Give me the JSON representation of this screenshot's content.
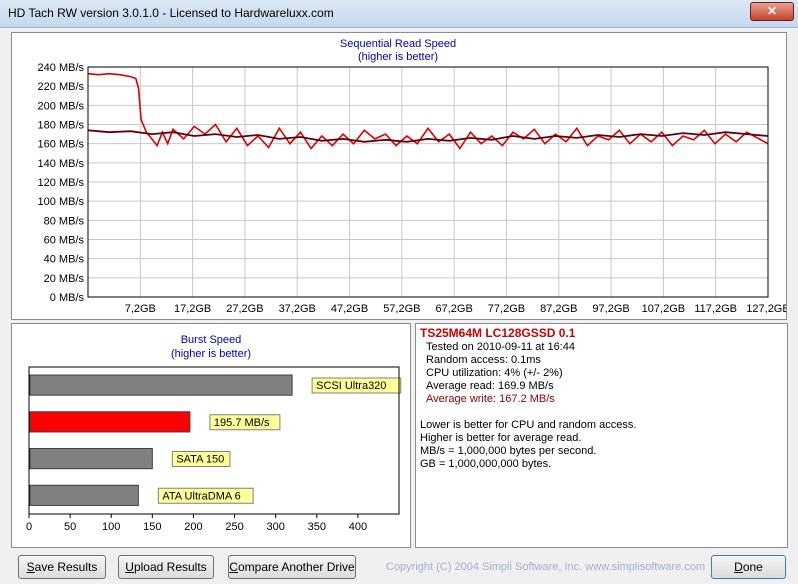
{
  "window": {
    "title": "HD Tach RW version 3.0.1.0 - Licensed to Hardwareluxx.com",
    "close_glyph": "✕"
  },
  "chart_data": [
    {
      "type": "line",
      "title": "Sequential Read Speed",
      "subtitle": "(higher is better)",
      "xlabel": "",
      "ylabel": "",
      "ylim": [
        0,
        240
      ],
      "yticks": [
        "0 MB/s",
        "20 MB/s",
        "40 MB/s",
        "60 MB/s",
        "80 MB/s",
        "100 MB/s",
        "120 MB/s",
        "140 MB/s",
        "160 MB/s",
        "180 MB/s",
        "200 MB/s",
        "220 MB/s",
        "240 MB/s"
      ],
      "xticks": [
        "7,2GB",
        "17,2GB",
        "27,2GB",
        "37,2GB",
        "47,2GB",
        "57,2GB",
        "67,2GB",
        "77,2GB",
        "87,2GB",
        "97,2GB",
        "107,2GB",
        "117,2GB",
        "127,2GB"
      ],
      "xlim": [
        0,
        128
      ],
      "grid": true,
      "series": [
        {
          "color": "#e00000",
          "x": [
            0,
            2,
            4,
            6,
            8,
            9,
            9.5,
            10,
            11,
            12,
            13,
            14,
            15,
            16,
            18,
            20,
            22,
            24,
            26,
            28,
            30,
            32,
            34,
            36,
            38,
            40,
            42,
            44,
            46,
            48,
            50,
            52,
            54,
            56,
            58,
            60,
            62,
            64,
            66,
            68,
            70,
            72,
            74,
            76,
            78,
            80,
            82,
            84,
            86,
            88,
            90,
            92,
            94,
            96,
            98,
            100,
            102,
            104,
            106,
            108,
            110,
            112,
            114,
            116,
            118,
            120,
            122,
            124,
            126,
            128
          ],
          "y": [
            233,
            232,
            233,
            232,
            230,
            228,
            218,
            185,
            172,
            165,
            158,
            172,
            160,
            175,
            165,
            178,
            170,
            180,
            162,
            176,
            158,
            168,
            156,
            176,
            160,
            172,
            155,
            168,
            158,
            170,
            160,
            174,
            165,
            170,
            158,
            168,
            160,
            176,
            162,
            170,
            155,
            172,
            160,
            168,
            158,
            172,
            165,
            175,
            160,
            170,
            162,
            176,
            158,
            168,
            164,
            174,
            160,
            170,
            162,
            172,
            158,
            168,
            164,
            174,
            160,
            170,
            162,
            172,
            166,
            160
          ]
        },
        {
          "color": "#600010",
          "x": [
            0,
            4,
            8,
            12,
            16,
            20,
            24,
            28,
            32,
            36,
            40,
            44,
            48,
            52,
            56,
            60,
            64,
            68,
            72,
            76,
            80,
            84,
            88,
            92,
            96,
            100,
            104,
            108,
            112,
            116,
            120,
            124,
            128
          ],
          "y": [
            174,
            172,
            173,
            170,
            172,
            168,
            170,
            167,
            169,
            165,
            167,
            163,
            165,
            162,
            164,
            162,
            165,
            163,
            166,
            164,
            168,
            165,
            168,
            166,
            169,
            167,
            170,
            168,
            171,
            169,
            172,
            170,
            168
          ]
        }
      ]
    },
    {
      "type": "bar",
      "title": "Burst Speed",
      "subtitle": "(higher is better)",
      "xlim": [
        0,
        450
      ],
      "xticks": [
        "0",
        "50",
        "100",
        "150",
        "200",
        "250",
        "300",
        "350",
        "400"
      ],
      "categories": [
        "SCSI Ultra320",
        "195.7 MB/s",
        "SATA 150",
        "ATA UltraDMA 6"
      ],
      "values": [
        320,
        195.7,
        150,
        133
      ],
      "colors": [
        "#808080",
        "#ff0000",
        "#808080",
        "#808080"
      ]
    }
  ],
  "info": {
    "drive": "TS25M64M LC128GSSD 0.1",
    "tested": "Tested on 2010-09-11 at 16:44",
    "random_access": "Random access: 0.1ms",
    "cpu": "CPU utilization: 4% (+/- 2%)",
    "avg_read": "Average read: 169.9 MB/s",
    "avg_write": "Average write: 167.2 MB/s",
    "note1": "Lower is better for CPU and random access.",
    "note2": "Higher is better for average read.",
    "note3": "MB/s = 1,000,000 bytes per second.",
    "note4": "GB = 1,000,000,000 bytes."
  },
  "buttons": {
    "save_key": "S",
    "save_rest": "ave Results",
    "upload_key": "U",
    "upload_rest": "pload Results",
    "compare_key": "C",
    "compare_rest": "ompare Another Drive",
    "done_key": "D",
    "done_rest": "one"
  },
  "copyright": "Copyright (C) 2004 Simpli Software, Inc. www.simplisoftware.com"
}
